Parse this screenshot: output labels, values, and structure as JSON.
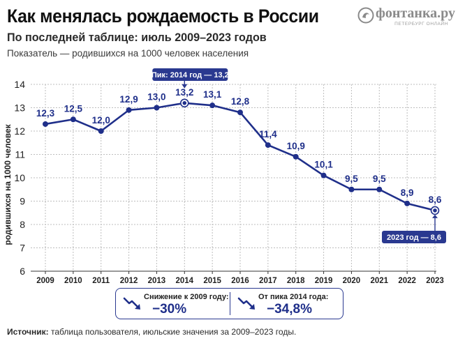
{
  "header": {
    "title": "Как менялась рождаемость в России",
    "subtitle": "По последней таблице: июль 2009–2023 годов",
    "note": "Показатель — родившихся на 1000 человек населения"
  },
  "logo": {
    "name": "фонтанка.ру",
    "tagline": "ПЕТЕРБУРГ ОНЛАЙН",
    "color": "#8a8a8a"
  },
  "colors": {
    "line": "#1f2f8a",
    "accent": "#2a3990",
    "grid": "#bdbdbd"
  },
  "chart_data": {
    "type": "line",
    "x": [
      "2009",
      "2010",
      "2011",
      "2012",
      "2013",
      "2014",
      "2015",
      "2016",
      "2017",
      "2018",
      "2019",
      "2020",
      "2021",
      "2022",
      "2023"
    ],
    "series": [
      {
        "values": [
          12.3,
          12.5,
          12.0,
          12.9,
          13.0,
          13.2,
          13.1,
          12.8,
          11.4,
          10.9,
          10.1,
          9.5,
          9.5,
          8.9,
          8.6
        ]
      }
    ],
    "data_labels": [
      "12,3",
      "12,5",
      "12,0",
      "12,9",
      "13,0",
      "13,2",
      "13,1",
      "12,8",
      "11,4",
      "10,9",
      "10,1",
      "9,5",
      "9,5",
      "8,9",
      "8,6"
    ],
    "ylabel": "родившихся на 1000 человек",
    "ylim": [
      6,
      14
    ],
    "yticks": [
      "6",
      "7",
      "8",
      "9",
      "10",
      "11",
      "12",
      "13",
      "14"
    ],
    "grid": true,
    "annotations": [
      {
        "index": 5,
        "text": "Пик: 2014 год — 13,2",
        "placement": "above"
      },
      {
        "index": 14,
        "text": "2023 год — 8,6",
        "placement": "below"
      }
    ]
  },
  "summary": {
    "left": {
      "label": "Снижение к 2009 году:",
      "value": "−30%",
      "icon": "trend-down-icon"
    },
    "right": {
      "label": "От пика 2014 года:",
      "value": "−34,8%",
      "icon": "trend-down-icon"
    }
  },
  "source": {
    "label": "Источник:",
    "text": " таблица пользователя, июльские значения за 2009–2023 годы."
  }
}
